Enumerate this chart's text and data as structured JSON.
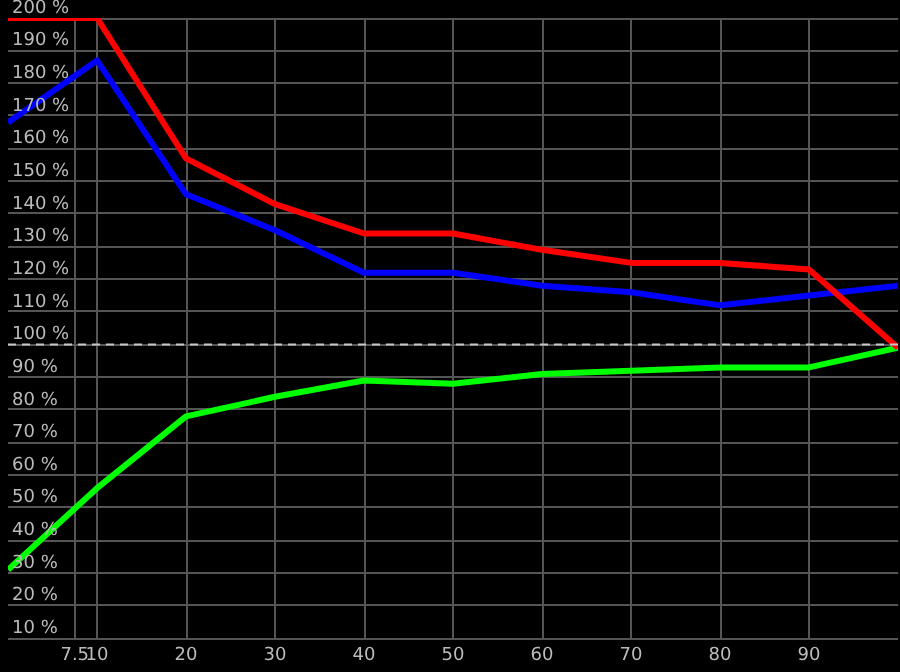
{
  "chart_data": {
    "type": "line",
    "x": [
      0,
      10,
      20,
      30,
      40,
      50,
      60,
      70,
      80,
      90,
      100
    ],
    "series": [
      {
        "color": "#ff0000",
        "values": [
          200,
          200,
          157,
          143,
          134,
          134,
          129,
          125,
          125,
          123,
          99
        ]
      },
      {
        "color": "#0000ff",
        "values": [
          168,
          187,
          146,
          135,
          122,
          122,
          118,
          116,
          112,
          115,
          118
        ]
      },
      {
        "color": "#00ff00",
        "values": [
          31,
          56,
          78,
          84,
          89,
          88,
          91,
          92,
          93,
          93,
          99
        ]
      }
    ],
    "xlim": [
      0,
      100
    ],
    "xticks": [
      {
        "value": 7.5,
        "label": "7.5"
      },
      10,
      20,
      30,
      40,
      50,
      60,
      70,
      80,
      90
    ],
    "ylim": [
      10,
      200
    ],
    "yticks": [
      {
        "value": 10,
        "label": "10 %"
      },
      {
        "value": 20,
        "label": "20 %"
      },
      {
        "value": 30,
        "label": "30 %"
      },
      {
        "value": 40,
        "label": "40 %"
      },
      {
        "value": 50,
        "label": "50 %"
      },
      {
        "value": 60,
        "label": "60 %"
      },
      {
        "value": 70,
        "label": "70 %"
      },
      {
        "value": 80,
        "label": "80 %"
      },
      {
        "value": 90,
        "label": "90 %"
      },
      {
        "value": 100,
        "label": "100 %"
      },
      {
        "value": 110,
        "label": "110 %"
      },
      {
        "value": 120,
        "label": "120 %"
      },
      {
        "value": 130,
        "label": "130 %"
      },
      {
        "value": 140,
        "label": "140 %"
      },
      {
        "value": 150,
        "label": "150 %"
      },
      {
        "value": 160,
        "label": "160 %"
      },
      {
        "value": 170,
        "label": "170 %"
      },
      {
        "value": 180,
        "label": "180 %"
      },
      {
        "value": 190,
        "label": "190 %"
      },
      {
        "value": 200,
        "label": "200 %"
      }
    ],
    "ref_lines": [
      {
        "axis": "y",
        "value": 100,
        "color": "#c8c8c8",
        "line_style": "dashed"
      }
    ],
    "grid": true,
    "marker": "none",
    "line_style": "solid",
    "legend": false
  }
}
